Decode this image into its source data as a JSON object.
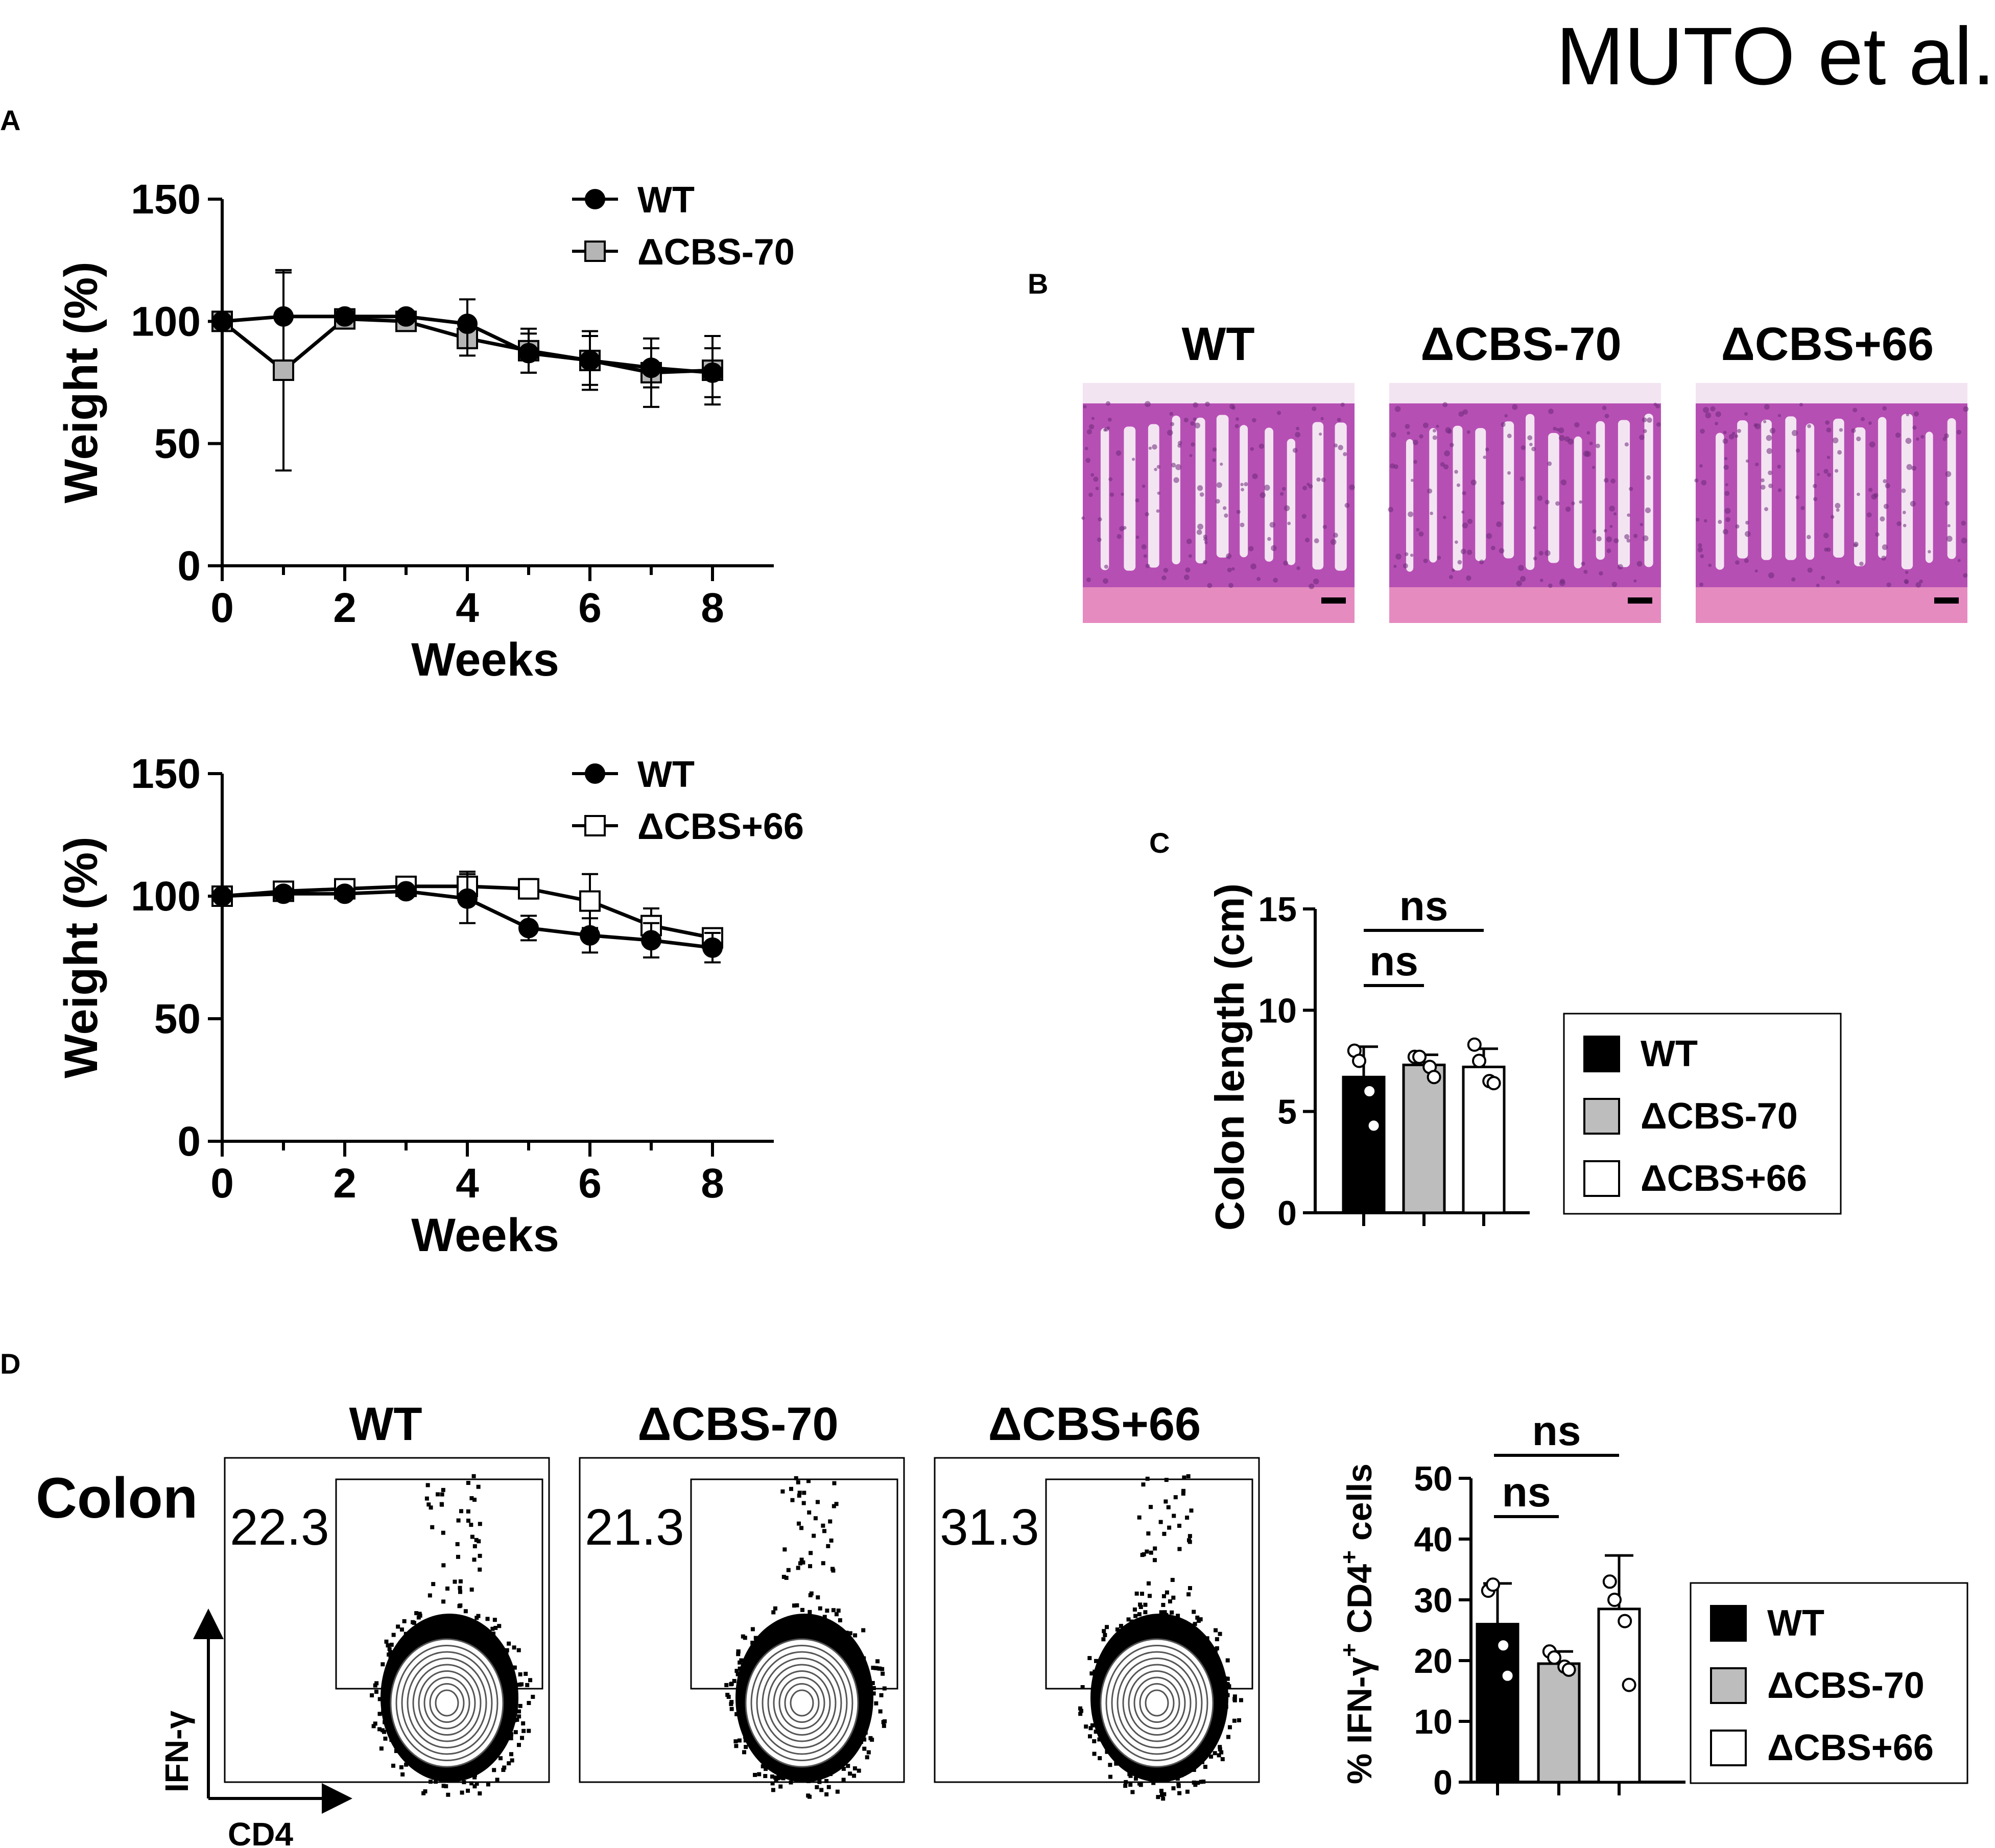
{
  "header": {
    "author_tag": "MUTO et al."
  },
  "panels": {
    "A": {
      "label": "A",
      "charts": [
        {
          "ylabel": "Weight (%)",
          "xlabel": "Weeks",
          "legend": [
            "WT",
            "ΔCBS-70"
          ]
        },
        {
          "ylabel": "Weight (%)",
          "xlabel": "Weeks",
          "legend": [
            "WT",
            "ΔCBS+66"
          ]
        }
      ]
    },
    "B": {
      "label": "B",
      "images": [
        {
          "title": "WT"
        },
        {
          "title": "ΔCBS-70"
        },
        {
          "title": "ΔCBS+66"
        }
      ],
      "colors": {
        "tissue": "#b64fb4",
        "lumen": "#f3e4f2",
        "muscle": "#e58bc0"
      }
    },
    "C": {
      "label": "C",
      "ylabel": "Colon length (cm)",
      "sig": [
        "ns",
        "ns"
      ],
      "legend": [
        "WT",
        "ΔCBS-70",
        "ΔCBS+66"
      ]
    },
    "D": {
      "label": "D",
      "row_label": "Colon",
      "plots": [
        {
          "title": "WT",
          "gate_value": "22.3"
        },
        {
          "title": "ΔCBS-70",
          "gate_value": "21.3"
        },
        {
          "title": "ΔCBS+66",
          "gate_value": "31.3"
        }
      ],
      "axis_y": "IFN-γ",
      "axis_x": "CD4",
      "bar_ylabel_main": "% IFN-γ",
      "bar_ylabel_sup": "+",
      "bar_ylabel_mid": " CD4",
      "bar_ylabel_sup2": "+",
      "bar_ylabel_end": " cells",
      "sig": [
        "ns",
        "ns"
      ],
      "legend": [
        "WT",
        "ΔCBS-70",
        "ΔCBS+66"
      ]
    }
  },
  "chart_data": [
    {
      "type": "line",
      "panel": "A-top",
      "xlabel": "Weeks",
      "ylabel": "Weight (%)",
      "xlim": [
        0,
        8
      ],
      "ylim": [
        0,
        150
      ],
      "xticks": [
        0,
        2,
        4,
        6,
        8
      ],
      "yticks": [
        0,
        50,
        100,
        150
      ],
      "series": [
        {
          "name": "WT",
          "marker": "circle",
          "fill": "#000000",
          "x": [
            0,
            1,
            2,
            3,
            4,
            5,
            6,
            7,
            8
          ],
          "y": [
            100,
            102,
            102,
            102,
            99,
            87,
            84,
            81,
            79
          ],
          "err": [
            2,
            18,
            2,
            2,
            10,
            8,
            10,
            8,
            10
          ]
        },
        {
          "name": "ΔCBS-70",
          "marker": "square",
          "fill": "#b5b5b5",
          "x": [
            0,
            1,
            2,
            3,
            4,
            5,
            6,
            7,
            8
          ],
          "y": [
            100,
            80,
            101,
            100,
            93,
            88,
            84,
            79,
            80
          ],
          "err": [
            2,
            41,
            3,
            3,
            7,
            9,
            12,
            14,
            14
          ]
        }
      ]
    },
    {
      "type": "line",
      "panel": "A-bottom",
      "xlabel": "Weeks",
      "ylabel": "Weight (%)",
      "xlim": [
        0,
        8
      ],
      "ylim": [
        0,
        150
      ],
      "xticks": [
        0,
        2,
        4,
        6,
        8
      ],
      "yticks": [
        0,
        50,
        100,
        150
      ],
      "series": [
        {
          "name": "WT",
          "marker": "circle",
          "fill": "#000000",
          "x": [
            0,
            1,
            2,
            3,
            4,
            5,
            6,
            7,
            8
          ],
          "y": [
            100,
            101,
            101,
            102,
            99,
            87,
            84,
            82,
            79
          ],
          "err": [
            2,
            2,
            2,
            2,
            10,
            5,
            7,
            7,
            6
          ]
        },
        {
          "name": "ΔCBS+66",
          "marker": "square",
          "fill": "#ffffff",
          "x": [
            0,
            1,
            2,
            3,
            4,
            5,
            6,
            7,
            8
          ],
          "y": [
            100,
            102,
            103,
            104,
            104,
            103,
            98,
            88,
            83
          ],
          "err": [
            2,
            2,
            2,
            3,
            6,
            4,
            11,
            7,
            3
          ]
        }
      ]
    },
    {
      "type": "bar",
      "panel": "C",
      "ylabel": "Colon length (cm)",
      "ylim": [
        0,
        15
      ],
      "yticks": [
        0,
        5,
        10,
        15
      ],
      "categories": [
        "WT",
        "ΔCBS-70",
        "ΔCBS+66"
      ],
      "values": [
        6.7,
        7.3,
        7.2
      ],
      "errors": [
        1.5,
        0.5,
        0.9
      ],
      "fills": [
        "#000000",
        "#bdbdbd",
        "#ffffff"
      ],
      "points": [
        [
          8.0,
          7.5,
          6.0,
          4.3
        ],
        [
          7.7,
          7.7,
          7.2,
          6.7
        ],
        [
          8.3,
          7.5,
          6.5,
          6.4
        ]
      ]
    },
    {
      "type": "bar",
      "panel": "D",
      "ylabel": "% IFN-γ+ CD4+ cells",
      "ylim": [
        0,
        50
      ],
      "yticks": [
        0,
        10,
        20,
        30,
        40,
        50
      ],
      "categories": [
        "WT",
        "ΔCBS-70",
        "ΔCBS+66"
      ],
      "values": [
        26,
        19.5,
        28.5
      ],
      "errors": [
        6.7,
        2.0,
        8.8
      ],
      "fills": [
        "#000000",
        "#bdbdbd",
        "#ffffff"
      ],
      "points": [
        [
          31.5,
          32.5,
          22.5,
          17.5
        ],
        [
          21.5,
          20.5,
          19.0,
          18.5
        ],
        [
          33.0,
          30.0,
          26.5,
          16.0
        ]
      ]
    }
  ]
}
